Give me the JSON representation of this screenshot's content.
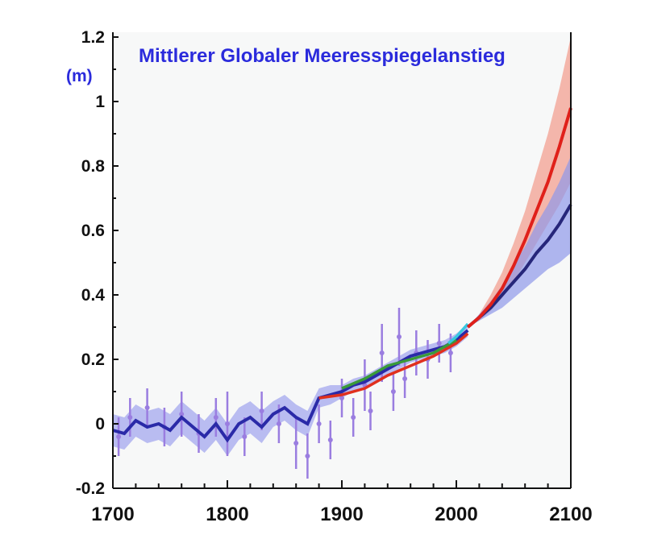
{
  "chart_data": {
    "type": "line",
    "title": "Mittlerer Globaler Meeresspiegelanstieg",
    "ylabel": "(m)",
    "xlim": [
      1700,
      2100
    ],
    "ylim": [
      -0.2,
      1.2
    ],
    "xticks": [
      1700,
      1800,
      1900,
      2000,
      2100
    ],
    "yticks": [
      -0.2,
      0,
      0.2,
      0.4,
      0.6,
      0.8,
      1,
      1.2
    ],
    "ytick_labels": [
      "-0.2",
      "0",
      "0.2",
      "0.4",
      "0.6",
      "0.8",
      "1",
      "1.2"
    ],
    "grid": false,
    "colors": {
      "reconstruction": "#2a2aa8",
      "reconstruction_band": "#a9acef",
      "tide_points": "#9a7de0",
      "tide_gauge": "#e0301e",
      "green": "#3a9a3a",
      "satellite": "#38c8e0",
      "proj_high": "#e0201a",
      "proj_high_band": "#f29a8a",
      "proj_low": "#26267a",
      "proj_low_band": "#8f98ea",
      "title": "#2b2bdc"
    },
    "series": [
      {
        "key": "reconstruction",
        "x": [
          1700,
          1710,
          1720,
          1730,
          1740,
          1750,
          1760,
          1770,
          1780,
          1790,
          1800,
          1810,
          1820,
          1830,
          1840,
          1850,
          1860,
          1870,
          1880,
          1890,
          1900,
          1910,
          1920,
          1930,
          1940,
          1950,
          1960,
          1970,
          1980,
          1990,
          2000,
          2010
        ],
        "y": [
          -0.02,
          -0.03,
          0.01,
          -0.01,
          0.0,
          -0.02,
          0.02,
          -0.01,
          -0.04,
          0.0,
          -0.05,
          0.0,
          0.02,
          -0.01,
          0.03,
          0.05,
          0.02,
          0.0,
          0.08,
          0.09,
          0.1,
          0.12,
          0.13,
          0.15,
          0.17,
          0.19,
          0.21,
          0.22,
          0.23,
          0.24,
          0.26,
          0.29
        ],
        "band": [
          0.05,
          0.05,
          0.05,
          0.05,
          0.05,
          0.05,
          0.05,
          0.05,
          0.05,
          0.05,
          0.05,
          0.05,
          0.05,
          0.05,
          0.04,
          0.04,
          0.04,
          0.04,
          0.03,
          0.03,
          0.02,
          0.02,
          0.02,
          0.02,
          0.02,
          0.02,
          0.02,
          0.02,
          0.02,
          0.02,
          0.02,
          0.02
        ]
      },
      {
        "key": "tide_gauge",
        "x": [
          1880,
          1900,
          1920,
          1940,
          1960,
          1980,
          2000,
          2010
        ],
        "y": [
          0.08,
          0.09,
          0.11,
          0.15,
          0.18,
          0.21,
          0.25,
          0.28
        ]
      },
      {
        "key": "green",
        "x": [
          1900,
          1920,
          1940,
          1960,
          1980,
          2000
        ],
        "y": [
          0.11,
          0.14,
          0.18,
          0.2,
          0.22,
          0.26
        ]
      },
      {
        "key": "satellite",
        "x": [
          1993,
          2000,
          2005,
          2010
        ],
        "y": [
          0.25,
          0.27,
          0.29,
          0.31
        ]
      },
      {
        "key": "proj_high",
        "x": [
          2010,
          2020,
          2030,
          2040,
          2050,
          2060,
          2070,
          2080,
          2090,
          2100
        ],
        "y": [
          0.3,
          0.33,
          0.37,
          0.42,
          0.49,
          0.57,
          0.66,
          0.75,
          0.86,
          0.98
        ],
        "lower": [
          0.3,
          0.32,
          0.35,
          0.39,
          0.44,
          0.5,
          0.56,
          0.62,
          0.68,
          0.75
        ],
        "upper": [
          0.3,
          0.34,
          0.4,
          0.47,
          0.56,
          0.66,
          0.78,
          0.9,
          1.04,
          1.2
        ]
      },
      {
        "key": "proj_low",
        "x": [
          2010,
          2020,
          2030,
          2040,
          2050,
          2060,
          2070,
          2080,
          2090,
          2100
        ],
        "y": [
          0.3,
          0.33,
          0.36,
          0.4,
          0.44,
          0.48,
          0.53,
          0.57,
          0.62,
          0.68
        ],
        "lower": [
          0.3,
          0.32,
          0.34,
          0.36,
          0.39,
          0.42,
          0.45,
          0.48,
          0.5,
          0.53
        ],
        "upper": [
          0.3,
          0.34,
          0.38,
          0.43,
          0.49,
          0.55,
          0.62,
          0.68,
          0.75,
          0.83
        ]
      }
    ],
    "tide_points": {
      "x": [
        1705,
        1715,
        1730,
        1745,
        1760,
        1775,
        1790,
        1800,
        1815,
        1830,
        1845,
        1860,
        1870,
        1880,
        1890,
        1900,
        1910,
        1920,
        1925,
        1935,
        1945,
        1950,
        1955,
        1965,
        1975,
        1985,
        1995
      ],
      "y": [
        -0.04,
        0.02,
        0.05,
        -0.01,
        0.03,
        -0.03,
        0.02,
        0.0,
        -0.04,
        0.04,
        0.0,
        -0.06,
        -0.1,
        0.0,
        -0.05,
        0.08,
        0.02,
        0.12,
        0.04,
        0.22,
        0.1,
        0.27,
        0.14,
        0.22,
        0.2,
        0.25,
        0.22
      ],
      "err": [
        0.06,
        0.06,
        0.06,
        0.06,
        0.07,
        0.06,
        0.06,
        0.1,
        0.06,
        0.06,
        0.06,
        0.08,
        0.07,
        0.06,
        0.06,
        0.06,
        0.06,
        0.08,
        0.06,
        0.09,
        0.06,
        0.09,
        0.06,
        0.07,
        0.06,
        0.06,
        0.06
      ]
    }
  }
}
